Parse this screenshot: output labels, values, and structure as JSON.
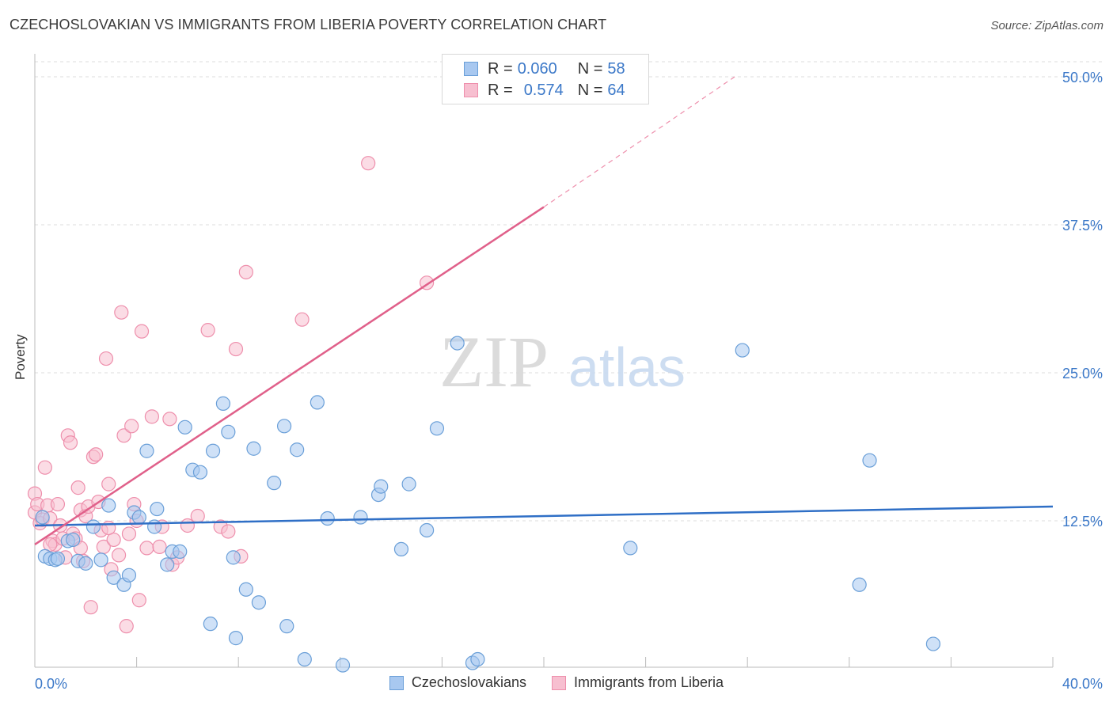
{
  "title": "CZECHOSLOVAKIAN VS IMMIGRANTS FROM LIBERIA POVERTY CORRELATION CHART",
  "source": "Source: ZipAtlas.com",
  "watermark": {
    "zip": "ZIP",
    "atlas": "atlas"
  },
  "legend": {
    "rows": [
      {
        "r_label": "R =",
        "r_value": "0.060",
        "n_label": "N =",
        "n_value": "58"
      },
      {
        "r_label": "R =",
        "r_value": "0.574",
        "n_label": "N =",
        "n_value": "64"
      }
    ]
  },
  "chart_data": {
    "type": "scatter",
    "title": "CZECHOSLOVAKIAN VS IMMIGRANTS FROM LIBERIA POVERTY CORRELATION CHART",
    "xlabel": "",
    "ylabel": "Poverty",
    "xlim": [
      0,
      40
    ],
    "ylim": [
      0,
      50
    ],
    "x_tick_labels": [
      "0.0%",
      "40.0%"
    ],
    "y_tick_labels": [
      "12.5%",
      "25.0%",
      "37.5%",
      "50.0%"
    ],
    "y_ticks": [
      12.5,
      25.0,
      37.5,
      50.0
    ],
    "grid": true,
    "colors": {
      "blue_fill": "#a8c8f0",
      "blue_stroke": "#6a9fd8",
      "blue_line": "#2f6fc6",
      "pink_fill": "#f7bfd0",
      "pink_stroke": "#ee8fac",
      "pink_line": "#e0608a",
      "tick_label": "#3b78c8",
      "grid": "#dddddd"
    },
    "series": [
      {
        "name": "Czechoslovakians",
        "color": "#a8c8f0",
        "points": [
          [
            0.3,
            12.8
          ],
          [
            0.4,
            9.5
          ],
          [
            0.6,
            9.3
          ],
          [
            0.8,
            9.2
          ],
          [
            1.3,
            10.8
          ],
          [
            1.7,
            9.1
          ],
          [
            2.0,
            8.9
          ],
          [
            2.3,
            12.0
          ],
          [
            2.6,
            9.2
          ],
          [
            2.9,
            13.8
          ],
          [
            3.1,
            7.7
          ],
          [
            3.5,
            7.1
          ],
          [
            3.7,
            7.9
          ],
          [
            3.9,
            13.2
          ],
          [
            4.1,
            12.8
          ],
          [
            4.4,
            18.4
          ],
          [
            4.7,
            12.0
          ],
          [
            4.8,
            13.5
          ],
          [
            5.2,
            8.8
          ],
          [
            5.4,
            9.9
          ],
          [
            5.7,
            9.9
          ],
          [
            5.9,
            20.4
          ],
          [
            6.2,
            16.8
          ],
          [
            6.5,
            16.6
          ],
          [
            6.9,
            3.8
          ],
          [
            7.0,
            18.4
          ],
          [
            7.4,
            22.4
          ],
          [
            7.6,
            20.0
          ],
          [
            7.8,
            9.4
          ],
          [
            7.9,
            2.6
          ],
          [
            8.3,
            6.7
          ],
          [
            8.6,
            18.6
          ],
          [
            8.8,
            5.6
          ],
          [
            9.4,
            15.7
          ],
          [
            9.8,
            20.5
          ],
          [
            9.9,
            3.6
          ],
          [
            10.3,
            18.5
          ],
          [
            10.6,
            0.8
          ],
          [
            11.1,
            22.5
          ],
          [
            11.5,
            12.7
          ],
          [
            12.1,
            0.3
          ],
          [
            12.8,
            12.8
          ],
          [
            13.5,
            14.7
          ],
          [
            13.6,
            15.4
          ],
          [
            14.4,
            10.1
          ],
          [
            14.7,
            15.6
          ],
          [
            15.4,
            11.7
          ],
          [
            15.8,
            20.3
          ],
          [
            16.6,
            27.5
          ],
          [
            17.2,
            0.5
          ],
          [
            17.4,
            0.8
          ],
          [
            23.4,
            10.2
          ],
          [
            27.8,
            26.9
          ],
          [
            32.4,
            7.1
          ],
          [
            32.8,
            17.6
          ],
          [
            35.3,
            2.1
          ],
          [
            0.9,
            9.3
          ],
          [
            1.5,
            10.9
          ]
        ]
      },
      {
        "name": "Immigrants from Liberia",
        "color": "#f7bfd0",
        "points": [
          [
            0.0,
            14.8
          ],
          [
            0.0,
            13.2
          ],
          [
            0.1,
            13.9
          ],
          [
            0.2,
            12.3
          ],
          [
            0.3,
            12.6
          ],
          [
            0.4,
            17.0
          ],
          [
            0.5,
            13.8
          ],
          [
            0.6,
            12.7
          ],
          [
            0.7,
            10.8
          ],
          [
            0.8,
            10.5
          ],
          [
            0.9,
            13.9
          ],
          [
            1.0,
            12.1
          ],
          [
            1.1,
            11.0
          ],
          [
            1.3,
            19.7
          ],
          [
            1.4,
            19.1
          ],
          [
            1.5,
            11.4
          ],
          [
            1.6,
            11.0
          ],
          [
            1.7,
            15.3
          ],
          [
            1.8,
            10.2
          ],
          [
            1.8,
            13.4
          ],
          [
            1.9,
            9.1
          ],
          [
            2.0,
            12.9
          ],
          [
            2.1,
            13.7
          ],
          [
            2.2,
            5.2
          ],
          [
            2.3,
            17.9
          ],
          [
            2.4,
            18.1
          ],
          [
            2.5,
            14.1
          ],
          [
            2.6,
            11.7
          ],
          [
            2.7,
            10.3
          ],
          [
            2.8,
            26.2
          ],
          [
            2.9,
            15.6
          ],
          [
            3.0,
            8.4
          ],
          [
            3.1,
            10.9
          ],
          [
            3.3,
            9.6
          ],
          [
            3.4,
            30.1
          ],
          [
            3.5,
            19.7
          ],
          [
            3.6,
            3.6
          ],
          [
            3.7,
            11.4
          ],
          [
            3.8,
            20.5
          ],
          [
            3.9,
            13.9
          ],
          [
            4.1,
            5.8
          ],
          [
            4.2,
            28.5
          ],
          [
            4.4,
            10.2
          ],
          [
            4.6,
            21.3
          ],
          [
            4.9,
            10.3
          ],
          [
            5.3,
            21.1
          ],
          [
            5.4,
            8.8
          ],
          [
            5.6,
            9.4
          ],
          [
            6.0,
            12.1
          ],
          [
            6.4,
            12.9
          ],
          [
            6.8,
            28.6
          ],
          [
            7.3,
            12.0
          ],
          [
            7.6,
            11.6
          ],
          [
            7.9,
            27.0
          ],
          [
            8.1,
            9.5
          ],
          [
            8.3,
            33.5
          ],
          [
            10.5,
            29.5
          ],
          [
            13.1,
            42.7
          ],
          [
            15.4,
            32.6
          ],
          [
            1.2,
            9.4
          ],
          [
            0.6,
            10.5
          ],
          [
            2.9,
            11.9
          ],
          [
            4.0,
            12.5
          ],
          [
            5.0,
            12.0
          ]
        ]
      }
    ],
    "trendlines": [
      {
        "series": "Czechoslovakians",
        "x": [
          0,
          40
        ],
        "y": [
          12.1,
          13.7
        ],
        "dashed_extension": false
      },
      {
        "series": "Immigrants from Liberia",
        "x": [
          0,
          20.0
        ],
        "y": [
          10.5,
          39.0
        ],
        "dashed_to": [
          27.5,
          50.0
        ]
      }
    ]
  }
}
